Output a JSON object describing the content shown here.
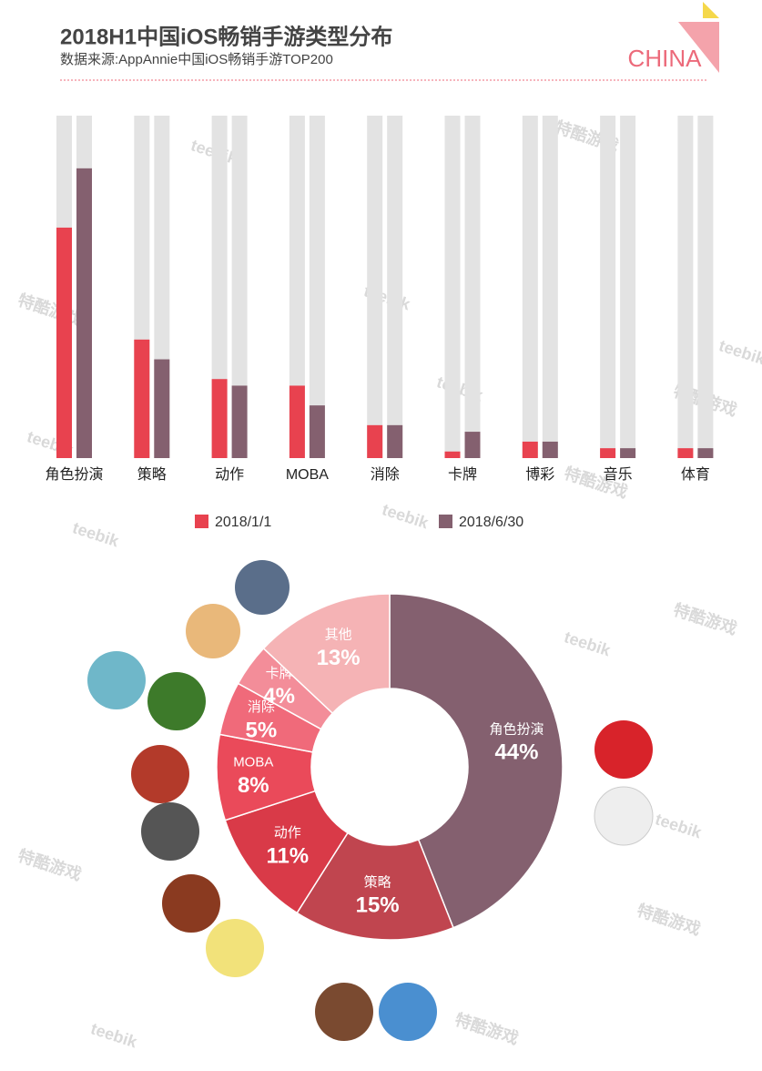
{
  "header": {
    "title": "2018H1中国iOS畅销手游类型分布",
    "subtitle": "数据来源:AppAnnie中国iOS畅销手游TOP200",
    "brand": "CHINA"
  },
  "watermarks": [
    "teebik",
    "特酷游戏"
  ],
  "chart_data": [
    {
      "type": "bar",
      "categories": [
        "角色扮演",
        "策略",
        "动作",
        "MOBA",
        "消除",
        "卡牌",
        "博彩",
        "音乐",
        "体育"
      ],
      "series": [
        {
          "name": "2018/1/1",
          "color": "#e8424f",
          "values": [
            70,
            36,
            24,
            22,
            10,
            2,
            5,
            3,
            3
          ]
        },
        {
          "name": "2018/6/30",
          "color": "#84606f",
          "values": [
            88,
            30,
            22,
            16,
            10,
            8,
            5,
            3,
            3
          ]
        }
      ],
      "ylim": [
        0,
        104
      ]
    },
    {
      "type": "donut",
      "categories": [
        "角色扮演",
        "策略",
        "动作",
        "MOBA",
        "消除",
        "卡牌",
        "其他"
      ],
      "values": [
        44,
        15,
        11,
        8,
        5,
        4,
        13
      ],
      "value_labels": [
        "44%",
        "15%",
        "11%",
        "8%",
        "5%",
        "4%",
        "13%"
      ],
      "colors": [
        "#84606f",
        "#c0454f",
        "#d93a48",
        "#ea4a5a",
        "#f06a7a",
        "#f38d99",
        "#f5b3b5"
      ]
    }
  ]
}
